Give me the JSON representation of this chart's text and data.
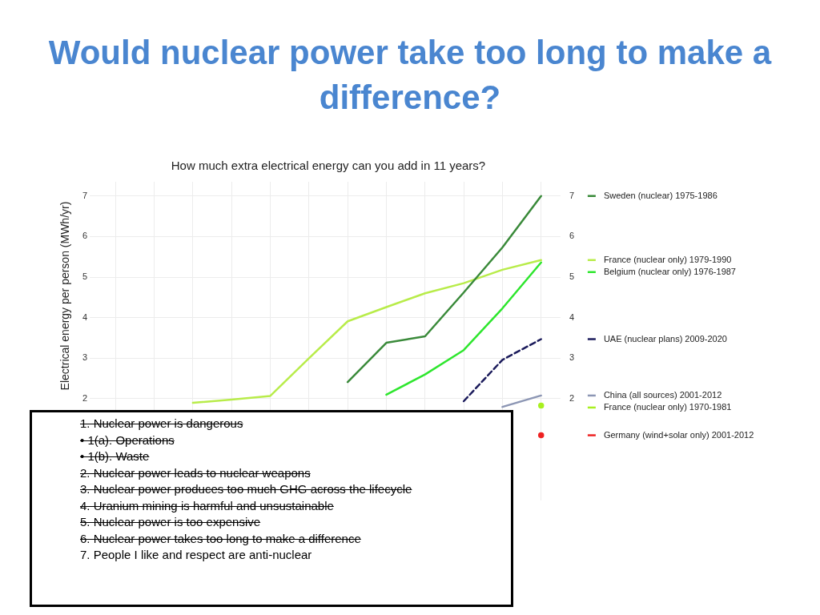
{
  "chart_data": {
    "type": "line",
    "title": "Would nuclear power take too long to make a difference?",
    "subtitle": "How much extra electrical energy can you add in 11 years?",
    "ylabel": "Electrical energy per person (MWh/yr)",
    "categories": [
      null,
      null,
      null,
      null,
      null,
      null,
      null,
      null,
      null,
      null,
      null,
      null
    ],
    "ylim": [
      -0.35,
      7.35
    ],
    "yticks": [
      2,
      3,
      4,
      5,
      6,
      7
    ],
    "y2lim": [
      -0.35,
      7.35
    ],
    "y2ticks": [
      2,
      3,
      4,
      5,
      6,
      7
    ],
    "tick_labels": "y",
    "grid": true,
    "legend": "right",
    "line_style": "solid",
    "series": [
      {
        "name": "Sweden (nuclear) 1975-1986",
        "color": "#3a8a3a",
        "values": [
          null,
          null,
          null,
          null,
          null,
          null,
          2.41,
          3.38,
          3.54,
          4.62,
          5.73,
          7.0
        ]
      },
      {
        "name": "France (nuclear only) 1979-1990",
        "color": "#b8ec4a",
        "values": [
          null,
          null,
          1.9,
          1.98,
          2.07,
          3.0,
          3.91,
          4.26,
          4.6,
          4.85,
          5.18,
          5.42
        ]
      },
      {
        "name": "Belgium (nuclear only) 1976-1987",
        "color": "#2ee62e",
        "values": [
          null,
          null,
          null,
          null,
          null,
          null,
          null,
          2.1,
          2.6,
          3.2,
          4.23,
          5.36
        ]
      },
      {
        "name": "UAE (nuclear plans) 2009-2020",
        "color": "#1c1c5c",
        "line_style": "dashed",
        "values": [
          null,
          null,
          null,
          null,
          null,
          null,
          null,
          null,
          null,
          1.94,
          2.96,
          3.47
        ]
      },
      {
        "name": "China (all sources) 2001-2012",
        "color": "#8c96b4",
        "values": [
          null,
          null,
          null,
          null,
          null,
          null,
          null,
          null,
          null,
          null,
          1.8,
          2.08
        ]
      },
      {
        "name": "France (nuclear only) 1970-1981",
        "color": "#a8f020",
        "marker": "circle",
        "values": [
          null,
          null,
          null,
          null,
          null,
          null,
          null,
          null,
          null,
          null,
          null,
          1.83
        ]
      },
      {
        "name": "Germany (wind+solar only) 2001-2012",
        "color": "#ee2222",
        "marker": "circle",
        "values": [
          null,
          null,
          null,
          null,
          null,
          null,
          null,
          null,
          null,
          null,
          null,
          1.1
        ]
      }
    ],
    "annotations": [
      "1. Nuclear power is dangerous",
      "• 1(a). Operations",
      "• 1(b). Waste",
      "2. Nuclear power leads to nuclear weapons",
      "3. Nuclear power produces too much GHG across the lifecycle",
      "4. Uranium mining is harmful and unsustainable",
      "5. Nuclear power is too expensive",
      "6. Nuclear power takes too long to make a difference",
      "7. People I like and respect are anti-nuclear"
    ]
  }
}
